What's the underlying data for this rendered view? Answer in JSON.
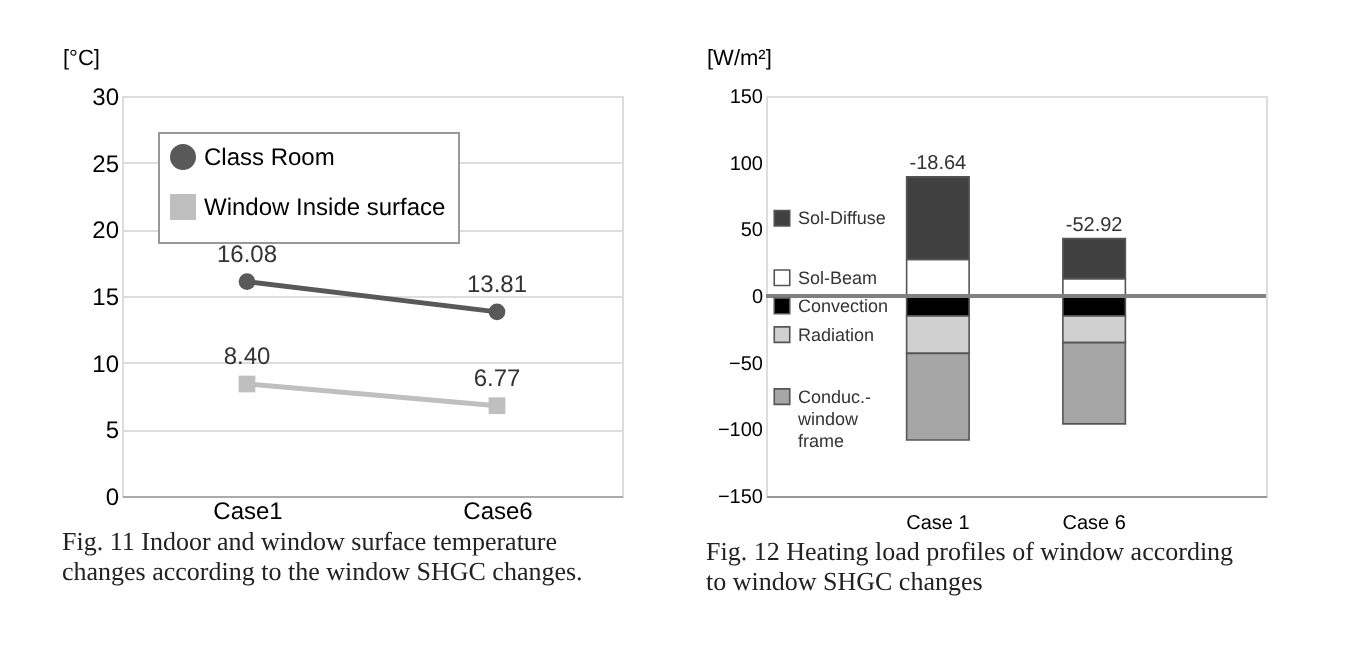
{
  "chart_data": [
    {
      "type": "line",
      "title": "Fig. 11  Indoor and window surface temperature changes according to the window SHGC changes.",
      "ylabel": "[°C]",
      "categories": [
        "Case1",
        "Case6"
      ],
      "series": [
        {
          "name": "Class Room",
          "color": "#595959",
          "marker": "circle",
          "values": [
            16.08,
            13.81
          ]
        },
        {
          "name": "Window Inside surface",
          "color": "#bfbfbf",
          "marker": "square",
          "values": [
            8.4,
            6.77
          ],
          "value_labels": [
            "8.40",
            "6.77"
          ]
        }
      ],
      "ylim": [
        0,
        30
      ],
      "yticks": [
        0,
        5,
        10,
        15,
        20,
        25,
        30
      ],
      "grid": "y",
      "legend": "top left",
      "data_labels": true
    },
    {
      "type": "bar",
      "stacked": true,
      "title": "Fig. 12  Heating load profiles of window according to window SHGC changes",
      "ylabel": "[W/m²]",
      "categories": [
        "Case 1",
        "Case 6"
      ],
      "series": [
        {
          "name": "Sol-Beam",
          "color": "#ffffff",
          "values": [
            27.36,
            13
          ]
        },
        {
          "name": "Sol-Diffuse",
          "color": "#404040",
          "values": [
            62,
            30
          ]
        },
        {
          "name": "Convection",
          "color": "#000000",
          "values": [
            -15,
            -15
          ]
        },
        {
          "name": "Radiation",
          "color": "#d0d0d0",
          "values": [
            -28,
            -20
          ]
        },
        {
          "name": "Conduc.-window frame",
          "color": "#a6a6a6",
          "values": [
            -65,
            -60.92
          ]
        }
      ],
      "totals": [
        "-18.64",
        "-52.92"
      ],
      "ylim": [
        -150,
        150
      ],
      "yticks": [
        -150,
        -100,
        -50,
        0,
        50,
        100,
        150
      ],
      "grid": false,
      "legend": "left",
      "ref_lines": [
        {
          "axis": "y",
          "value": 0,
          "color": "#808080"
        }
      ]
    }
  ]
}
